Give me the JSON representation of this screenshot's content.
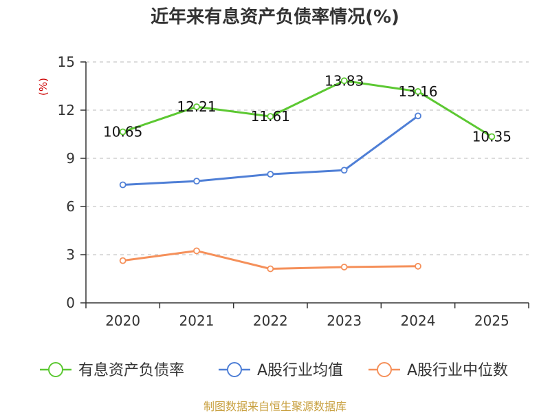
{
  "chart_data": {
    "type": "line",
    "title": "近年来有息资产负债率情况(%)",
    "ylabel": "(%)",
    "ylim": [
      0,
      15
    ],
    "yticks": [
      0,
      3,
      6,
      9,
      12,
      15
    ],
    "grid": true,
    "legend_placement": "bottom",
    "categories": [
      "2020",
      "2021",
      "2022",
      "2023",
      "2024",
      "2025"
    ],
    "series": [
      {
        "name": "有息资产负债率",
        "color": "#5cc832",
        "values": [
          10.65,
          12.21,
          11.61,
          13.83,
          13.16,
          10.35
        ],
        "labels": [
          "10.65",
          "12.21",
          "11.61",
          "13.83",
          "13.16",
          "10.35"
        ]
      },
      {
        "name": "A股行业均值",
        "color": "#4f7fd6",
        "values": [
          7.35,
          7.58,
          8.01,
          8.26,
          11.64,
          null
        ]
      },
      {
        "name": "A股行业中位数",
        "color": "#f5905a",
        "values": [
          2.63,
          3.24,
          2.12,
          2.23,
          2.28,
          null
        ]
      }
    ],
    "source": "制图数据来自恒生聚源数据库"
  }
}
